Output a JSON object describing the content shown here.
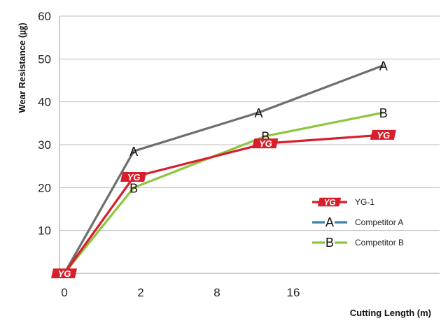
{
  "chart_data": {
    "type": "line",
    "title": "",
    "xlabel": "Cutting Length (m)",
    "ylabel": "Wear Resistance (㎍)",
    "categories": [
      "0",
      "2",
      "8",
      "16"
    ],
    "ylim": [
      0,
      60
    ],
    "yticks": [
      "60",
      "50",
      "40",
      "30",
      "20",
      "10"
    ],
    "grid": "horizontal",
    "legend_position": "right",
    "series": [
      {
        "name": "Competitor A",
        "marker": "A",
        "color": "#6d6e70",
        "legend_color": "#3a82a8",
        "points": [
          [
            0,
            0
          ],
          [
            5,
            28.5
          ],
          [
            14,
            37.5
          ],
          [
            23,
            48.5
          ]
        ]
      },
      {
        "name": "Competitor B",
        "marker": "B",
        "color": "#8dc63f",
        "legend_color": "#8dc63f",
        "points": [
          [
            0,
            0
          ],
          [
            5,
            20
          ],
          [
            14.5,
            32
          ],
          [
            23,
            37.5
          ]
        ]
      },
      {
        "name": "YG-1",
        "marker": "YG",
        "color": "#d81e2a",
        "legend_color": "#d81e2a",
        "points": [
          [
            0,
            0
          ],
          [
            5,
            22.5
          ],
          [
            14.5,
            30.3
          ],
          [
            23,
            32.3
          ]
        ]
      }
    ]
  }
}
